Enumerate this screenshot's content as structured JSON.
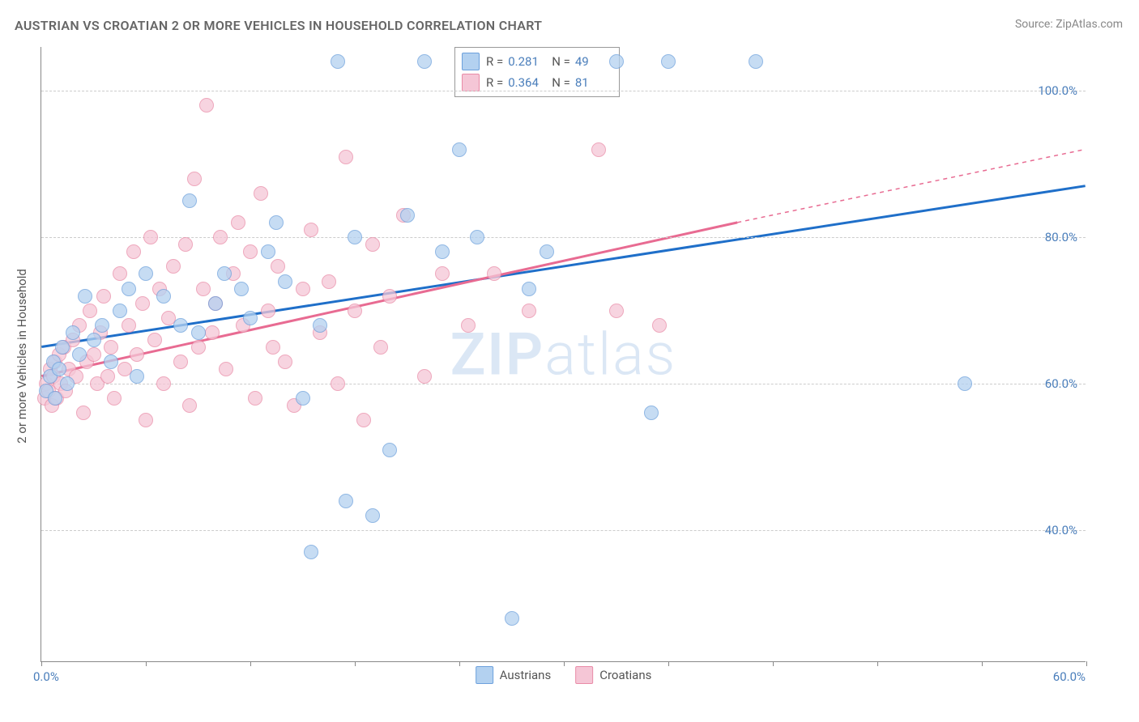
{
  "title": "AUSTRIAN VS CROATIAN 2 OR MORE VEHICLES IN HOUSEHOLD CORRELATION CHART",
  "source": "Source: ZipAtlas.com",
  "yaxis_label": "2 or more Vehicles in Household",
  "watermark_a": "ZIP",
  "watermark_b": "atlas",
  "chart": {
    "type": "scatter",
    "xlim": [
      0,
      60
    ],
    "ylim": [
      22,
      106
    ],
    "background_color": "#ffffff",
    "grid_color": "#cccccc",
    "axis_color": "#888888",
    "tick_label_color": "#4a7ebb",
    "ytick_values": [
      40,
      60,
      80,
      100
    ],
    "ytick_labels": [
      "40.0%",
      "60.0%",
      "80.0%",
      "100.0%"
    ],
    "xtick_positions": [
      0,
      6,
      12,
      18,
      24,
      30,
      36,
      42,
      48,
      54,
      60
    ],
    "xtick_label_left": "0.0%",
    "xtick_label_right": "60.0%",
    "marker_radius": 9,
    "marker_opacity": 0.75,
    "title_fontsize": 16,
    "axis_fontsize": 15
  },
  "series": {
    "austrians": {
      "label": "Austrians",
      "fill": "#b3d1f0",
      "stroke": "#6ca0dc",
      "line_color": "#1f6fc9",
      "line_width": 3,
      "R_label": "R =",
      "R_value": "0.281",
      "N_label": "N =",
      "N_value": "49",
      "trend": {
        "x1": 0,
        "y1": 65,
        "x2": 60,
        "y2": 87
      },
      "trend_dash": "none",
      "points": [
        [
          0.3,
          59
        ],
        [
          0.5,
          61
        ],
        [
          0.7,
          63
        ],
        [
          0.8,
          58
        ],
        [
          1.0,
          62
        ],
        [
          1.2,
          65
        ],
        [
          1.5,
          60
        ],
        [
          1.8,
          67
        ],
        [
          2.2,
          64
        ],
        [
          2.5,
          72
        ],
        [
          3.0,
          66
        ],
        [
          3.5,
          68
        ],
        [
          4.0,
          63
        ],
        [
          4.5,
          70
        ],
        [
          5.0,
          73
        ],
        [
          5.5,
          61
        ],
        [
          6.0,
          75
        ],
        [
          7.0,
          72
        ],
        [
          8.0,
          68
        ],
        [
          8.5,
          85
        ],
        [
          9.0,
          67
        ],
        [
          10.0,
          71
        ],
        [
          10.5,
          75
        ],
        [
          11.5,
          73
        ],
        [
          12.0,
          69
        ],
        [
          13.0,
          78
        ],
        [
          13.5,
          82
        ],
        [
          14.0,
          74
        ],
        [
          15.0,
          58
        ],
        [
          15.5,
          37
        ],
        [
          16.0,
          68
        ],
        [
          17.0,
          104
        ],
        [
          17.5,
          44
        ],
        [
          18.0,
          80
        ],
        [
          19.0,
          42
        ],
        [
          20.0,
          51
        ],
        [
          21.0,
          83
        ],
        [
          22.0,
          104
        ],
        [
          23.0,
          78
        ],
        [
          24.0,
          92
        ],
        [
          25.0,
          80
        ],
        [
          27.0,
          28
        ],
        [
          28.0,
          73
        ],
        [
          29.0,
          78
        ],
        [
          33.0,
          104
        ],
        [
          35.0,
          56
        ],
        [
          36.0,
          104
        ],
        [
          41.0,
          104
        ],
        [
          53.0,
          60
        ]
      ]
    },
    "croatians": {
      "label": "Croatians",
      "fill": "#f5c6d6",
      "stroke": "#e98ba7",
      "line_color": "#e86b92",
      "line_width": 3,
      "R_label": "R =",
      "R_value": "0.364",
      "N_label": "N =",
      "N_value": "81",
      "trend_solid": {
        "x1": 0,
        "y1": 61,
        "x2": 40,
        "y2": 82
      },
      "trend_dash": {
        "x1": 40,
        "y1": 82,
        "x2": 60,
        "y2": 92
      },
      "points": [
        [
          0.2,
          58
        ],
        [
          0.3,
          60
        ],
        [
          0.4,
          59
        ],
        [
          0.5,
          62
        ],
        [
          0.6,
          57
        ],
        [
          0.7,
          61
        ],
        [
          0.8,
          63
        ],
        [
          0.9,
          58
        ],
        [
          1.0,
          64
        ],
        [
          1.1,
          60
        ],
        [
          1.3,
          65
        ],
        [
          1.4,
          59
        ],
        [
          1.6,
          62
        ],
        [
          1.8,
          66
        ],
        [
          2.0,
          61
        ],
        [
          2.2,
          68
        ],
        [
          2.4,
          56
        ],
        [
          2.6,
          63
        ],
        [
          2.8,
          70
        ],
        [
          3.0,
          64
        ],
        [
          3.2,
          60
        ],
        [
          3.4,
          67
        ],
        [
          3.6,
          72
        ],
        [
          3.8,
          61
        ],
        [
          4.0,
          65
        ],
        [
          4.2,
          58
        ],
        [
          4.5,
          75
        ],
        [
          4.8,
          62
        ],
        [
          5.0,
          68
        ],
        [
          5.3,
          78
        ],
        [
          5.5,
          64
        ],
        [
          5.8,
          71
        ],
        [
          6.0,
          55
        ],
        [
          6.3,
          80
        ],
        [
          6.5,
          66
        ],
        [
          6.8,
          73
        ],
        [
          7.0,
          60
        ],
        [
          7.3,
          69
        ],
        [
          7.6,
          76
        ],
        [
          8.0,
          63
        ],
        [
          8.3,
          79
        ],
        [
          8.5,
          57
        ],
        [
          8.8,
          88
        ],
        [
          9.0,
          65
        ],
        [
          9.3,
          73
        ],
        [
          9.5,
          98
        ],
        [
          9.8,
          67
        ],
        [
          10.0,
          71
        ],
        [
          10.3,
          80
        ],
        [
          10.6,
          62
        ],
        [
          11.0,
          75
        ],
        [
          11.3,
          82
        ],
        [
          11.6,
          68
        ],
        [
          12.0,
          78
        ],
        [
          12.3,
          58
        ],
        [
          12.6,
          86
        ],
        [
          13.0,
          70
        ],
        [
          13.3,
          65
        ],
        [
          13.6,
          76
        ],
        [
          14.0,
          63
        ],
        [
          14.5,
          57
        ],
        [
          15.0,
          73
        ],
        [
          15.5,
          81
        ],
        [
          16.0,
          67
        ],
        [
          16.5,
          74
        ],
        [
          17.0,
          60
        ],
        [
          17.5,
          91
        ],
        [
          18.0,
          70
        ],
        [
          18.5,
          55
        ],
        [
          19.0,
          79
        ],
        [
          19.5,
          65
        ],
        [
          20.0,
          72
        ],
        [
          20.8,
          83
        ],
        [
          22.0,
          61
        ],
        [
          23.0,
          75
        ],
        [
          24.5,
          68
        ],
        [
          26.0,
          75
        ],
        [
          28.0,
          70
        ],
        [
          32.0,
          92
        ],
        [
          33.0,
          70
        ],
        [
          35.5,
          68
        ]
      ]
    }
  }
}
